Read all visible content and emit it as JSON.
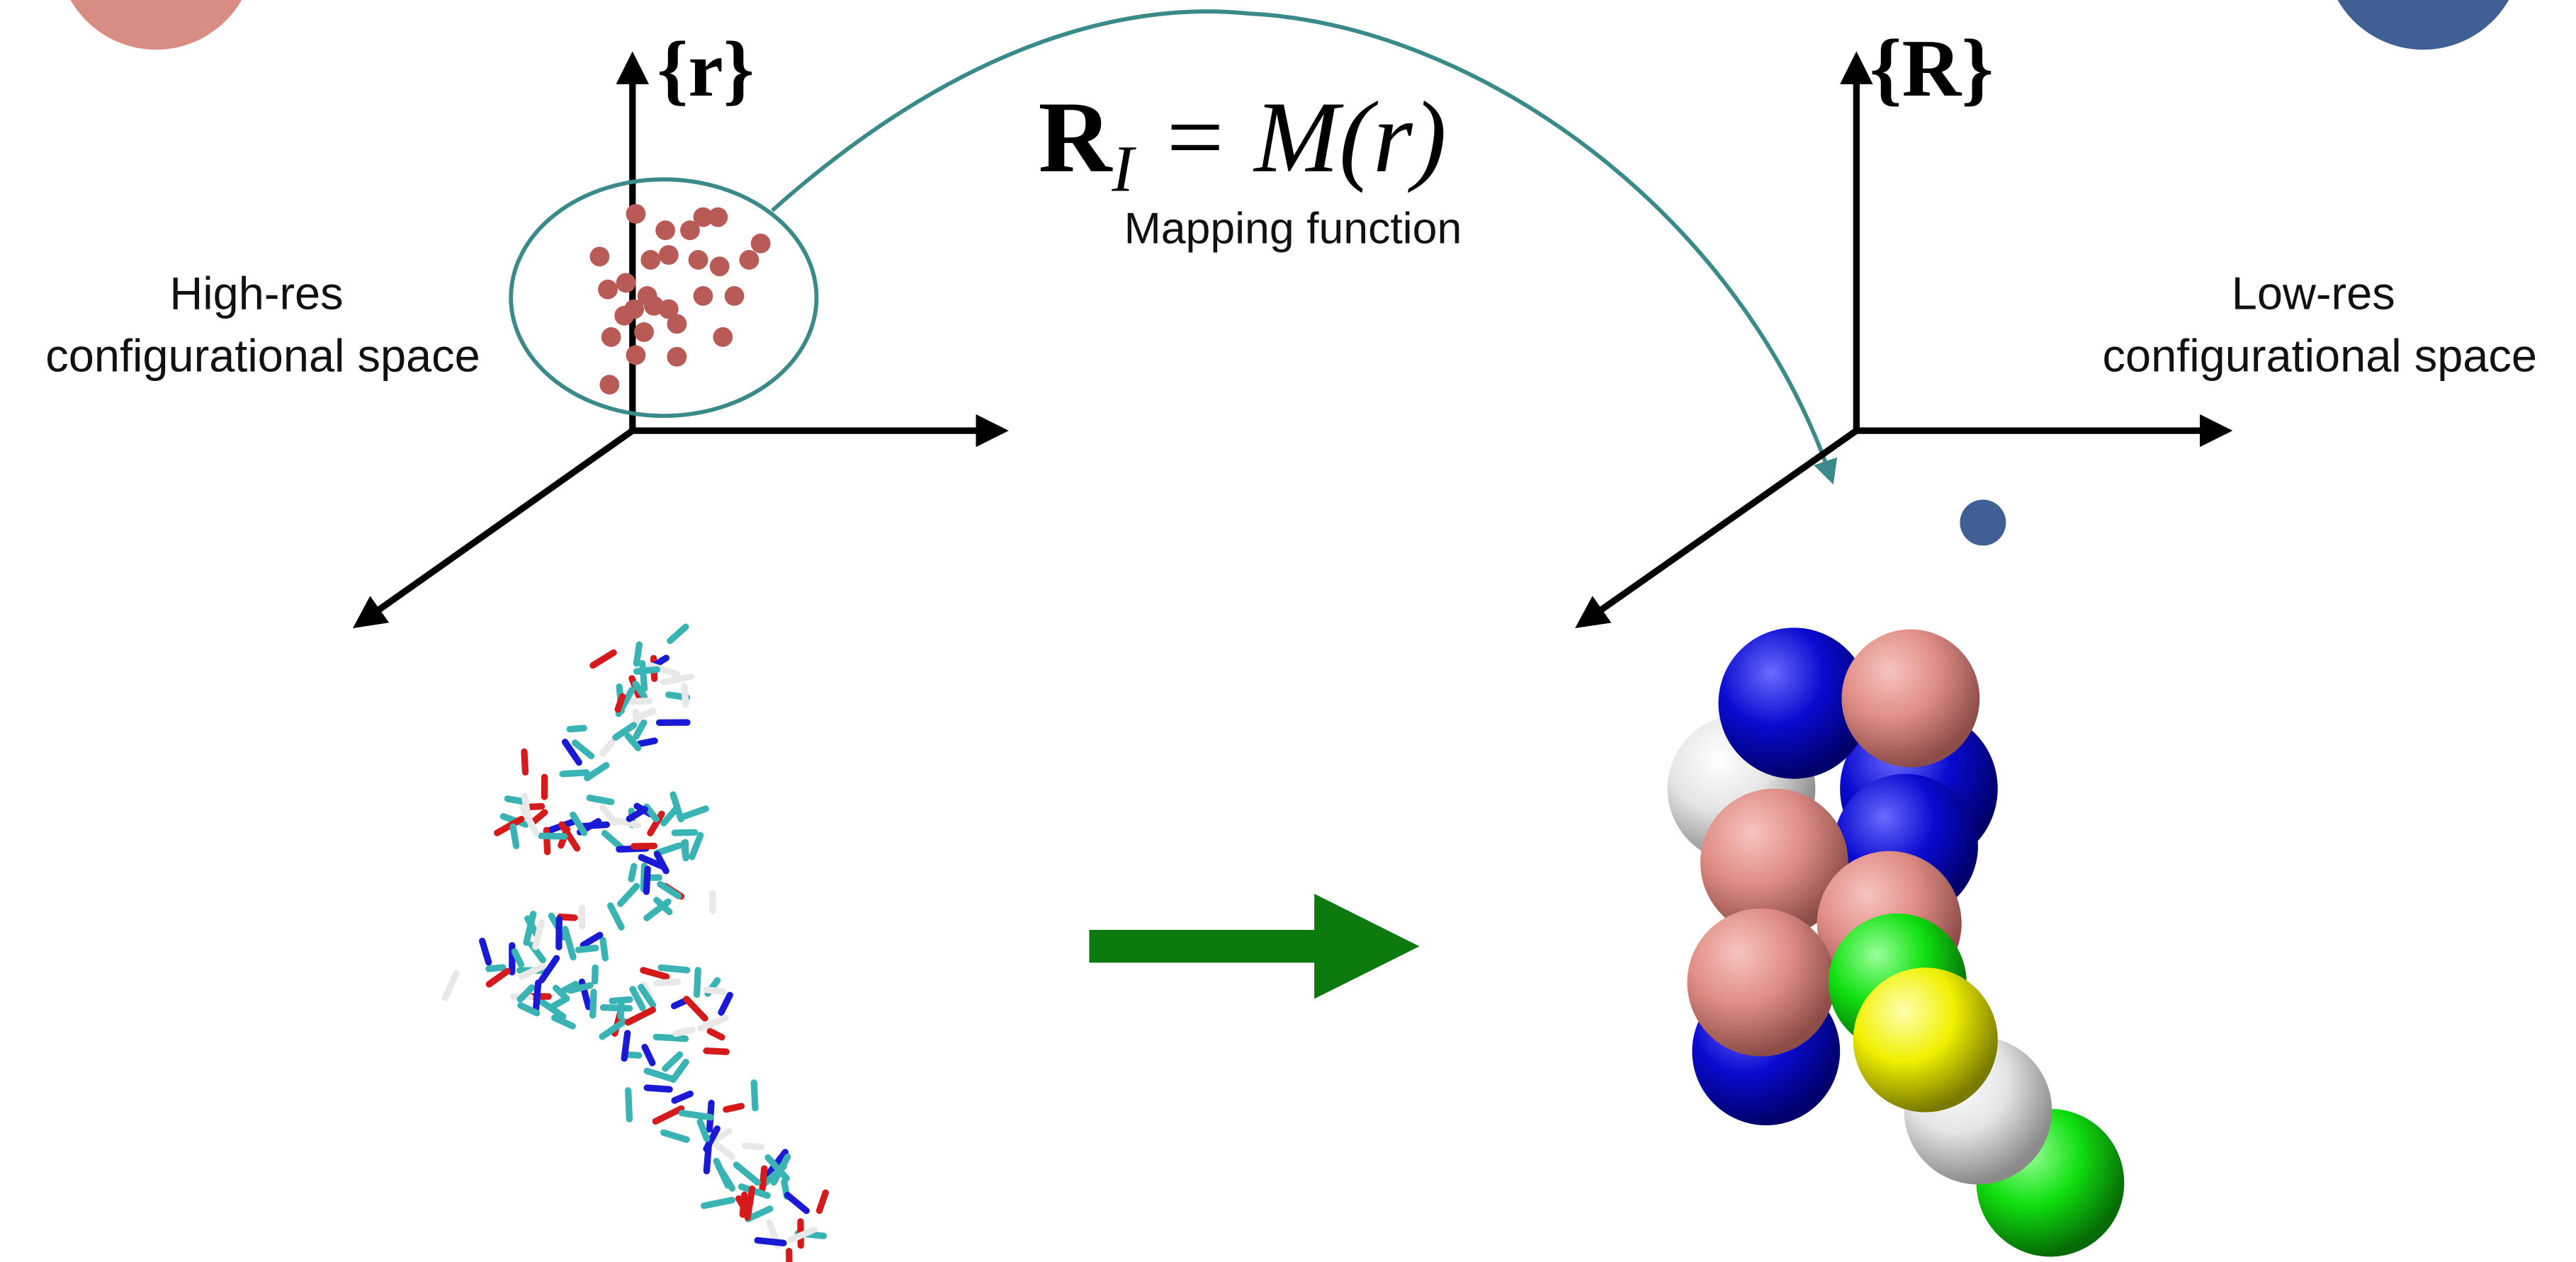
{
  "left_space": {
    "axis_label": "{r}",
    "caption_lines": [
      "High-res",
      "configurational space"
    ]
  },
  "right_space": {
    "axis_label": "{R}",
    "caption_lines": [
      "Low-res",
      "configurational space"
    ]
  },
  "mapping": {
    "lhs": "R",
    "subscript": "I",
    "rhs": "= M(r)",
    "caption": "Mapping function"
  }
}
